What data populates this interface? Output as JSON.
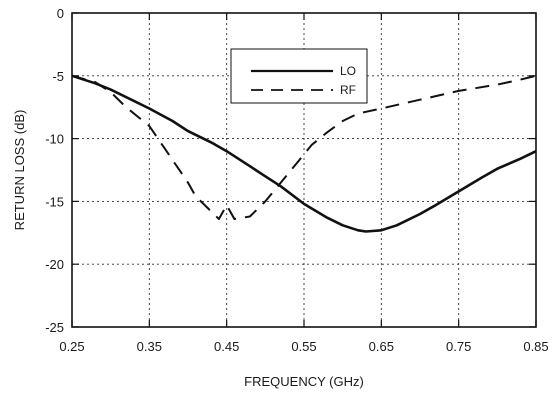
{
  "chart_data": {
    "type": "line",
    "title": "",
    "xlabel": "FREQUENCY (GHz)",
    "ylabel": "RETURN LOSS (dB)",
    "xlim": [
      0.25,
      0.85
    ],
    "ylim": [
      -25,
      0
    ],
    "xticks": [
      "0.25",
      "0.35",
      "0.45",
      "0.55",
      "0.65",
      "0.75",
      "0.85"
    ],
    "yticks": [
      "0",
      "-5",
      "-10",
      "-15",
      "-20",
      "-25"
    ],
    "grid": true,
    "legend_position": "top-center",
    "series": [
      {
        "name": "LO",
        "style": "solid",
        "color": "#111111",
        "x": [
          0.25,
          0.28,
          0.3,
          0.33,
          0.35,
          0.38,
          0.4,
          0.43,
          0.45,
          0.48,
          0.5,
          0.52,
          0.55,
          0.58,
          0.6,
          0.62,
          0.63,
          0.65,
          0.67,
          0.7,
          0.72,
          0.75,
          0.78,
          0.8,
          0.83,
          0.85
        ],
        "y": [
          -5.0,
          -5.6,
          -6.1,
          -7.0,
          -7.6,
          -8.6,
          -9.4,
          -10.3,
          -11.0,
          -12.2,
          -13.0,
          -13.8,
          -15.2,
          -16.3,
          -16.9,
          -17.3,
          -17.4,
          -17.3,
          -16.9,
          -16.0,
          -15.3,
          -14.2,
          -13.1,
          -12.4,
          -11.6,
          -11.0
        ]
      },
      {
        "name": "RF",
        "style": "dashed",
        "color": "#111111",
        "x": [
          0.25,
          0.28,
          0.3,
          0.32,
          0.35,
          0.37,
          0.4,
          0.41,
          0.42,
          0.44,
          0.45,
          0.46,
          0.48,
          0.5,
          0.52,
          0.54,
          0.56,
          0.58,
          0.6,
          0.62,
          0.65,
          0.7,
          0.75,
          0.8,
          0.83,
          0.85
        ],
        "y": [
          -5.0,
          -5.5,
          -6.3,
          -7.5,
          -9.0,
          -10.8,
          -13.5,
          -14.6,
          -15.2,
          -16.4,
          -15.3,
          -16.4,
          -16.2,
          -15.0,
          -13.5,
          -12.0,
          -10.5,
          -9.5,
          -8.6,
          -8.0,
          -7.6,
          -6.9,
          -6.2,
          -5.7,
          -5.3,
          -5.0
        ]
      }
    ]
  }
}
